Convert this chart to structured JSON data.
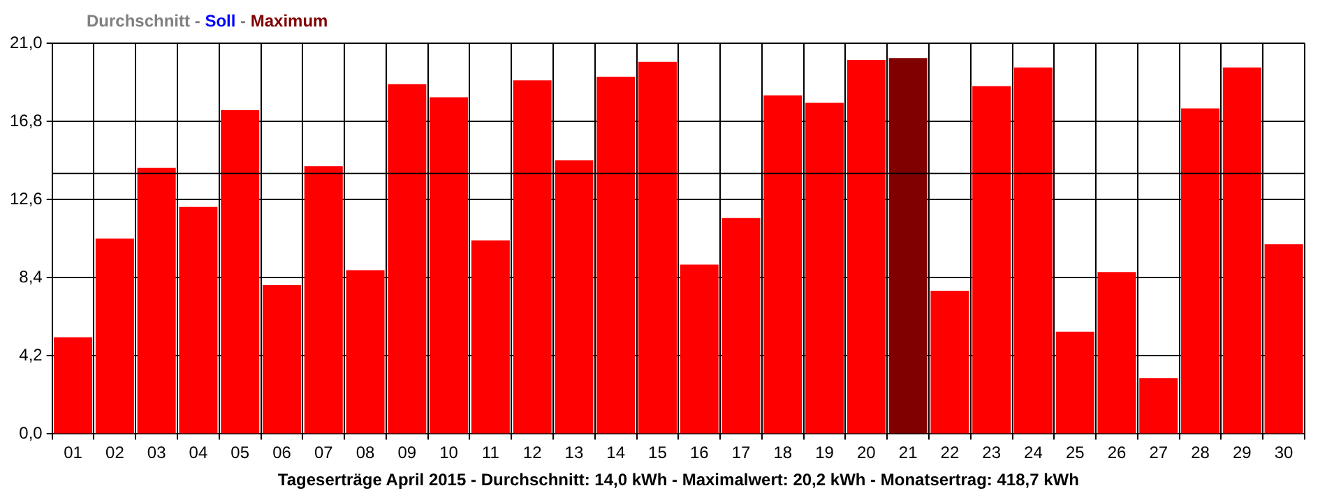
{
  "chart_data": {
    "type": "bar",
    "title": "Durchschnitt - Soll - Maximum",
    "xlabel": "Tageserträge April 2015 - Durchschnitt: 14,0 kWh - Maximalwert: 20,2 kWh - Monatsertrag: 418,7 kWh",
    "categories": [
      "01",
      "02",
      "03",
      "04",
      "05",
      "06",
      "07",
      "08",
      "09",
      "10",
      "11",
      "12",
      "13",
      "14",
      "15",
      "16",
      "17",
      "18",
      "19",
      "20",
      "21",
      "22",
      "23",
      "24",
      "25",
      "26",
      "27",
      "28",
      "29",
      "30"
    ],
    "values": [
      5.2,
      10.5,
      14.3,
      12.2,
      17.4,
      8.0,
      14.4,
      8.8,
      18.8,
      18.1,
      10.4,
      19.0,
      14.7,
      19.2,
      20.0,
      9.1,
      11.6,
      18.2,
      17.8,
      20.1,
      20.2,
      7.7,
      18.7,
      19.7,
      5.5,
      8.7,
      3.0,
      17.5,
      19.7,
      10.2
    ],
    "colors": [
      "#ff0000",
      "#ff0000",
      "#ff0000",
      "#ff0000",
      "#ff0000",
      "#ff0000",
      "#ff0000",
      "#ff0000",
      "#ff0000",
      "#ff0000",
      "#ff0000",
      "#ff0000",
      "#ff0000",
      "#ff0000",
      "#ff0000",
      "#ff0000",
      "#ff0000",
      "#ff0000",
      "#ff0000",
      "#ff0000",
      "#800000",
      "#ff0000",
      "#ff0000",
      "#ff0000",
      "#ff0000",
      "#ff0000",
      "#ff0000",
      "#ff0000",
      "#ff0000",
      "#ff0000"
    ],
    "ylim": [
      0,
      21
    ],
    "yticks": [
      {
        "value": 0,
        "label": "0,0"
      },
      {
        "value": 4.2,
        "label": "4,2"
      },
      {
        "value": 8.4,
        "label": "8,4"
      },
      {
        "value": 12.6,
        "label": "12,6"
      },
      {
        "value": 16.8,
        "label": "16,8"
      },
      {
        "value": 21,
        "label": "21,0"
      }
    ],
    "ref_lines": [
      {
        "axis": "y",
        "value": 14.0,
        "color": "#000000"
      }
    ],
    "grid": true
  }
}
